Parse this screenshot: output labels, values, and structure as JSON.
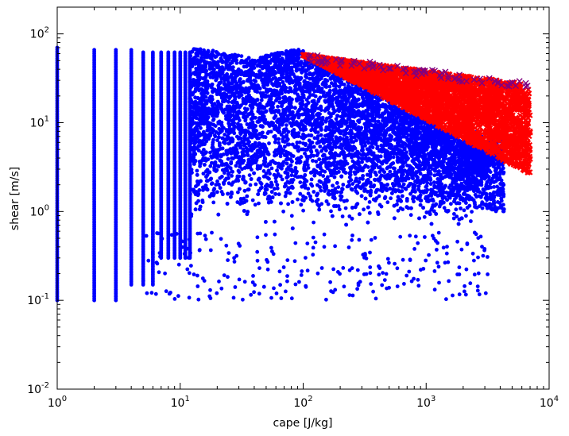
{
  "chart_data": {
    "type": "scatter",
    "title": "",
    "xlabel": "cape [J/kg]",
    "ylabel": "shear [m/s]",
    "x_scale": "log",
    "y_scale": "log",
    "xlim": [
      1,
      10000
    ],
    "ylim": [
      0.01,
      200
    ],
    "grid": false,
    "legend": "none",
    "x_ticks": [
      {
        "value": 1,
        "base": "10",
        "exp": "0"
      },
      {
        "value": 10,
        "base": "10",
        "exp": "1"
      },
      {
        "value": 100,
        "base": "10",
        "exp": "2"
      },
      {
        "value": 1000,
        "base": "10",
        "exp": "3"
      },
      {
        "value": 10000,
        "base": "10",
        "exp": "4"
      }
    ],
    "y_ticks": [
      {
        "value": 0.01,
        "base": "10",
        "exp": "-2"
      },
      {
        "value": 0.1,
        "base": "10",
        "exp": "-1"
      },
      {
        "value": 1,
        "base": "10",
        "exp": "0"
      },
      {
        "value": 10,
        "base": "10",
        "exp": "1"
      },
      {
        "value": 100,
        "base": "10",
        "exp": "2"
      }
    ],
    "series": [
      {
        "color": "#0000ff",
        "marker": "circle",
        "description_points": [
          [
            1,
            70
          ],
          [
            1,
            0.1
          ],
          [
            2,
            68
          ],
          [
            2,
            0.1
          ],
          [
            3,
            68
          ],
          [
            3,
            0.1
          ],
          [
            4,
            65
          ],
          [
            4,
            0.15
          ],
          [
            5,
            65
          ],
          [
            5,
            0.3
          ],
          [
            7,
            62
          ],
          [
            7,
            0.1
          ],
          [
            10,
            62
          ],
          [
            10,
            0.1
          ],
          [
            20,
            60
          ],
          [
            20,
            0.2
          ],
          [
            40,
            72
          ],
          [
            50,
            60
          ],
          [
            100,
            58
          ],
          [
            100,
            0.1
          ],
          [
            300,
            45
          ],
          [
            500,
            40
          ],
          [
            1000,
            38
          ],
          [
            1000,
            0.1
          ],
          [
            2000,
            7
          ],
          [
            2500,
            3
          ],
          [
            3000,
            4
          ],
          [
            4000,
            2.5
          ],
          [
            2000,
            0.1
          ],
          [
            3000,
            0.35
          ]
        ]
      },
      {
        "color": "#ff0000",
        "marker": "x",
        "edge_color": "#800080",
        "description_points": [
          [
            100,
            58
          ],
          [
            120,
            50
          ],
          [
            200,
            55
          ],
          [
            500,
            50
          ],
          [
            1000,
            45
          ],
          [
            2000,
            40
          ],
          [
            3000,
            35
          ],
          [
            5000,
            28
          ],
          [
            7000,
            20
          ],
          [
            5000,
            10
          ],
          [
            3000,
            7
          ],
          [
            2500,
            5.5
          ]
        ]
      }
    ]
  }
}
